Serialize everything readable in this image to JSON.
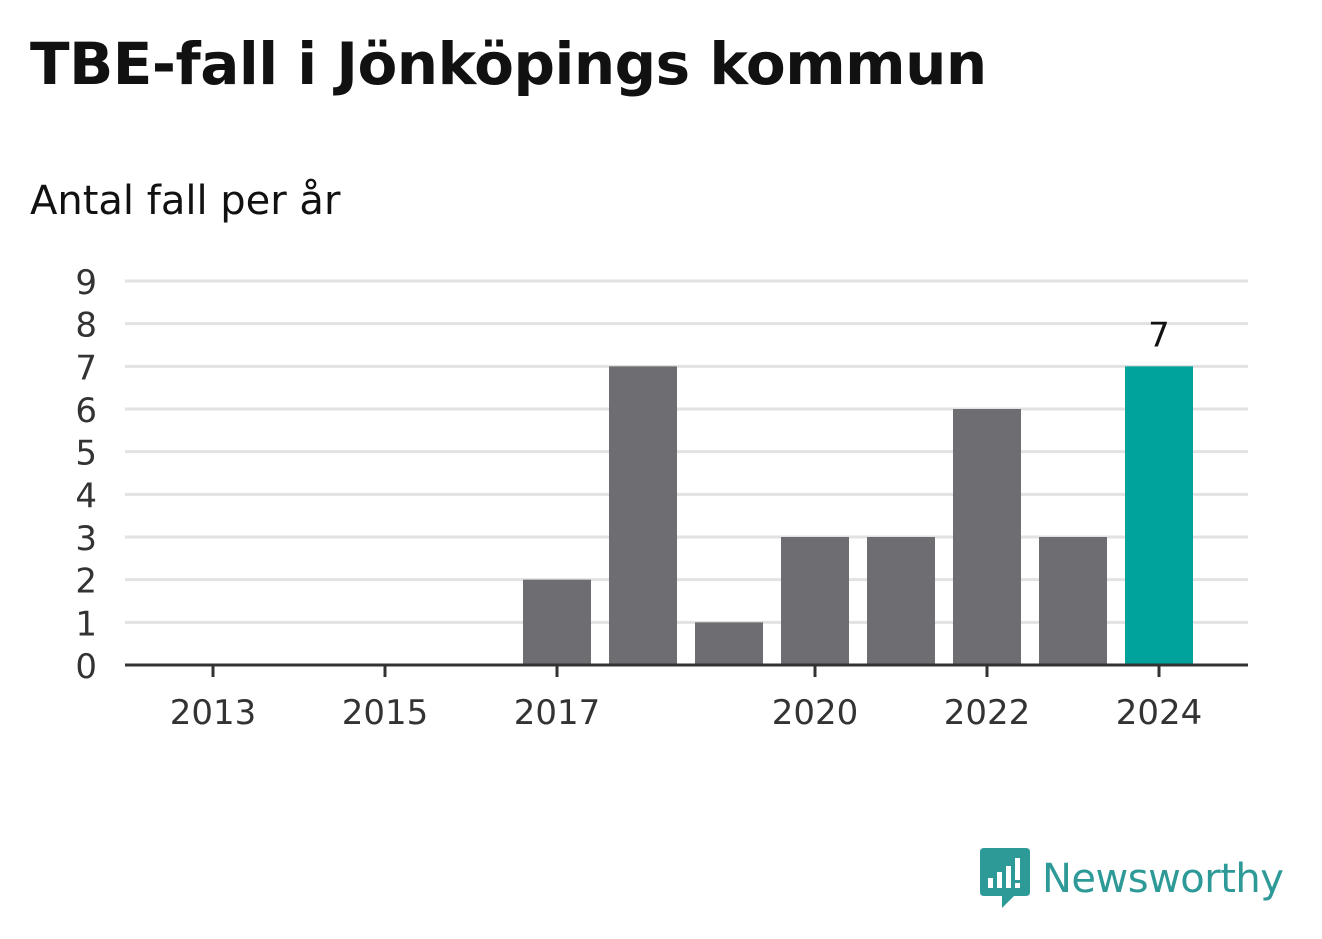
{
  "title": "TBE-fall i Jönköpings kommun",
  "subtitle": "Antal fall per år",
  "logo_text": "Newsworthy",
  "colors": {
    "bar": "#6e6d72",
    "highlight": "#00a39b",
    "grid": "#e2e2e2",
    "axis": "#333333",
    "logo": "#2e9a98"
  },
  "chart_data": {
    "type": "bar",
    "title": "TBE-fall i Jönköpings kommun",
    "subtitle": "Antal fall per år",
    "xlabel": "",
    "ylabel": "",
    "categories": [
      "2013",
      "2014",
      "2015",
      "2016",
      "2017",
      "2018",
      "2019",
      "2020",
      "2021",
      "2022",
      "2023",
      "2024"
    ],
    "values": [
      0,
      0,
      0,
      0,
      2,
      7,
      1,
      3,
      3,
      6,
      3,
      7
    ],
    "highlight_index": 11,
    "data_labels": [
      {
        "index": 11,
        "text": "7"
      }
    ],
    "x_tick_labels": [
      "2013",
      "2015",
      "2017",
      "2020",
      "2022",
      "2024"
    ],
    "y_ticks": [
      "0",
      "1",
      "2",
      "3",
      "4",
      "5",
      "6",
      "7",
      "8",
      "9"
    ],
    "ylim": [
      0,
      9
    ],
    "grid": true
  }
}
